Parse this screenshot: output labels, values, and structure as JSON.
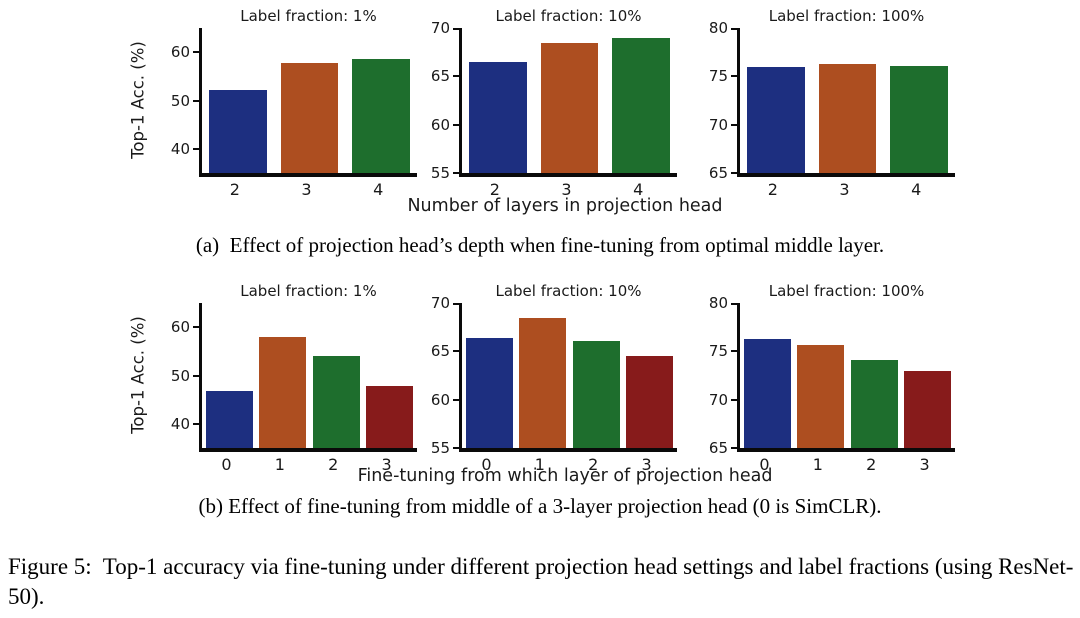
{
  "figure": {
    "ylabel": "Top-1 Acc. (%)",
    "captions": {
      "a": "(a)  Effect of projection head’s depth when fine-tuning from optimal middle layer.",
      "b": "(b) Effect of fine-tuning from middle of a 3-layer projection head (0 is SimCLR).",
      "main": "Figure 5:  Top-1 accuracy via fine-tuning under different projection head settings and label fractions (using ResNet-50)."
    }
  },
  "rows": [
    {
      "xlabel": "Number of layers in projection head"
    },
    {
      "xlabel": "Fine-tuning from which layer of projection head"
    }
  ],
  "colors": {
    "bar_blue": "#1d2f80",
    "bar_orange": "#ad4e20",
    "bar_green": "#1e6e2d",
    "bar_red": "#871b1b",
    "axis": "#0a0a0a"
  },
  "chart_data": [
    {
      "type": "bar",
      "row": 0,
      "title": "Label fraction: 1%",
      "categories": [
        "2",
        "3",
        "4"
      ],
      "values": [
        52.2,
        57.8,
        58.5
      ],
      "bar_colors": [
        "bar_blue",
        "bar_orange",
        "bar_green"
      ],
      "ylim": [
        35,
        65
      ],
      "yticks": [
        40,
        50,
        60
      ],
      "ylabel": "Top-1 Acc. (%)",
      "grid": false,
      "legend": false
    },
    {
      "type": "bar",
      "row": 0,
      "title": "Label fraction: 10%",
      "categories": [
        "2",
        "3",
        "4"
      ],
      "values": [
        66.5,
        68.4,
        69.0
      ],
      "bar_colors": [
        "bar_blue",
        "bar_orange",
        "bar_green"
      ],
      "ylim": [
        55,
        70
      ],
      "yticks": [
        55,
        60,
        65,
        70
      ],
      "grid": false,
      "legend": false
    },
    {
      "type": "bar",
      "row": 0,
      "title": "Label fraction: 100%",
      "categories": [
        "2",
        "3",
        "4"
      ],
      "values": [
        76.0,
        76.3,
        76.1
      ],
      "bar_colors": [
        "bar_blue",
        "bar_orange",
        "bar_green"
      ],
      "ylim": [
        65,
        80
      ],
      "yticks": [
        65,
        70,
        75,
        80
      ],
      "grid": false,
      "legend": false
    },
    {
      "type": "bar",
      "row": 1,
      "title": "Label fraction: 1%",
      "categories": [
        "0",
        "1",
        "2",
        "3"
      ],
      "values": [
        46.8,
        57.9,
        54.0,
        47.9
      ],
      "bar_colors": [
        "bar_blue",
        "bar_orange",
        "bar_green",
        "bar_red"
      ],
      "ylim": [
        35,
        65
      ],
      "yticks": [
        40,
        50,
        60
      ],
      "ylabel": "Top-1 Acc. (%)",
      "grid": false,
      "legend": false
    },
    {
      "type": "bar",
      "row": 1,
      "title": "Label fraction: 10%",
      "categories": [
        "0",
        "1",
        "2",
        "3"
      ],
      "values": [
        66.4,
        68.4,
        66.1,
        64.5
      ],
      "bar_colors": [
        "bar_blue",
        "bar_orange",
        "bar_green",
        "bar_red"
      ],
      "ylim": [
        55,
        70
      ],
      "yticks": [
        55,
        60,
        65,
        70
      ],
      "grid": false,
      "legend": false
    },
    {
      "type": "bar",
      "row": 1,
      "title": "Label fraction: 100%",
      "categories": [
        "0",
        "1",
        "2",
        "3"
      ],
      "values": [
        76.3,
        75.7,
        74.1,
        73.0
      ],
      "bar_colors": [
        "bar_blue",
        "bar_orange",
        "bar_green",
        "bar_red"
      ],
      "ylim": [
        65,
        80
      ],
      "yticks": [
        65,
        70,
        75,
        80
      ],
      "grid": false,
      "legend": false
    }
  ]
}
